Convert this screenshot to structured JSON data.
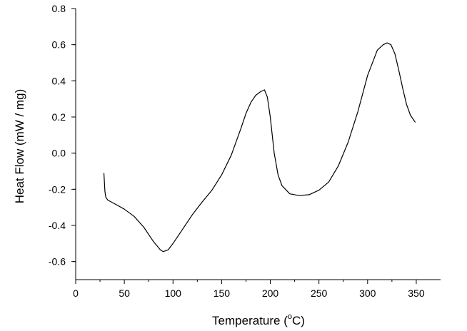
{
  "chart_data": {
    "type": "line",
    "title": "",
    "xlabel": "Temperature (",
    "xlabel_superscript": "o",
    "xlabel_suffix": "C)",
    "ylabel": "Heat Flow (mW / mg)",
    "xlim": [
      0,
      375
    ],
    "ylim": [
      -0.7,
      0.8
    ],
    "xticks": [
      0,
      50,
      100,
      150,
      200,
      250,
      300,
      350
    ],
    "xtick_labels": [
      "0",
      "50",
      "100",
      "150",
      "200",
      "250",
      "300",
      "350"
    ],
    "yticks": [
      -0.6,
      -0.4,
      -0.2,
      0.0,
      0.2,
      0.4,
      0.6,
      0.8
    ],
    "ytick_labels": [
      "-0.6",
      "-0.4",
      "-0.2",
      "0.0",
      "0.2",
      "0.4",
      "0.6",
      "0.8"
    ],
    "grid": false,
    "line_color": "#000000",
    "series": [
      {
        "x": [
          29,
          29.5,
          30,
          31,
          33,
          40,
          50,
          60,
          70,
          80,
          87,
          90,
          95,
          100,
          110,
          120,
          130,
          140,
          150,
          160,
          170,
          175,
          180,
          185,
          190,
          194,
          197,
          200,
          204,
          208,
          212,
          220,
          230,
          240,
          250,
          260,
          270,
          280,
          290,
          300,
          310,
          316,
          320,
          324,
          328,
          332,
          336,
          340,
          344,
          349
        ],
        "y": [
          -0.11,
          -0.16,
          -0.21,
          -0.245,
          -0.26,
          -0.28,
          -0.31,
          -0.35,
          -0.41,
          -0.49,
          -0.535,
          -0.545,
          -0.535,
          -0.5,
          -0.42,
          -0.34,
          -0.27,
          -0.205,
          -0.12,
          -0.01,
          0.14,
          0.22,
          0.28,
          0.32,
          0.34,
          0.35,
          0.31,
          0.2,
          0.0,
          -0.12,
          -0.18,
          -0.225,
          -0.235,
          -0.23,
          -0.205,
          -0.16,
          -0.07,
          0.06,
          0.23,
          0.43,
          0.57,
          0.6,
          0.61,
          0.6,
          0.55,
          0.46,
          0.36,
          0.27,
          0.21,
          0.17
        ]
      }
    ]
  }
}
